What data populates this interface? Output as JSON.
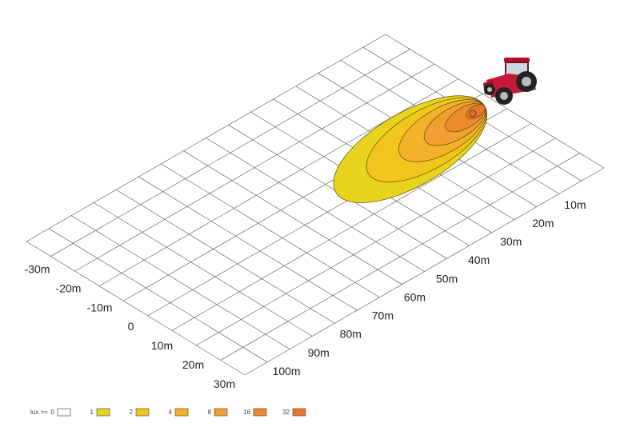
{
  "axes": {
    "lateral": {
      "ticks": [
        {
          "value": -30,
          "label": "-30m"
        },
        {
          "value": -20,
          "label": "-20m"
        },
        {
          "value": -10,
          "label": "-10m"
        },
        0,
        {
          "value": 10,
          "label": "10m"
        },
        {
          "value": 20,
          "label": "20m"
        },
        {
          "value": 30,
          "label": "30m"
        }
      ]
    },
    "distance": {
      "ticks": [
        {
          "value": 10,
          "label": "10m"
        },
        {
          "value": 20,
          "label": "20m"
        },
        {
          "value": 30,
          "label": "30m"
        },
        {
          "value": 40,
          "label": "40m"
        },
        {
          "value": 50,
          "label": "50m"
        },
        {
          "value": 60,
          "label": "60m"
        },
        {
          "value": 70,
          "label": "70m"
        },
        {
          "value": 80,
          "label": "80m"
        },
        {
          "value": 90,
          "label": "90m"
        },
        {
          "value": 100,
          "label": "100m"
        }
      ]
    }
  },
  "legend": {
    "title": "lux >=",
    "items": [
      {
        "value": 0,
        "color": "#ffffff"
      },
      {
        "value": 1,
        "color": "#e8d41c"
      },
      {
        "value": 2,
        "color": "#f1c51c"
      },
      {
        "value": 4,
        "color": "#f2b32a"
      },
      {
        "value": 8,
        "color": "#f0a030"
      },
      {
        "value": 16,
        "color": "#ec8a2e"
      },
      {
        "value": 32,
        "color": "#e8762a"
      }
    ]
  }
}
